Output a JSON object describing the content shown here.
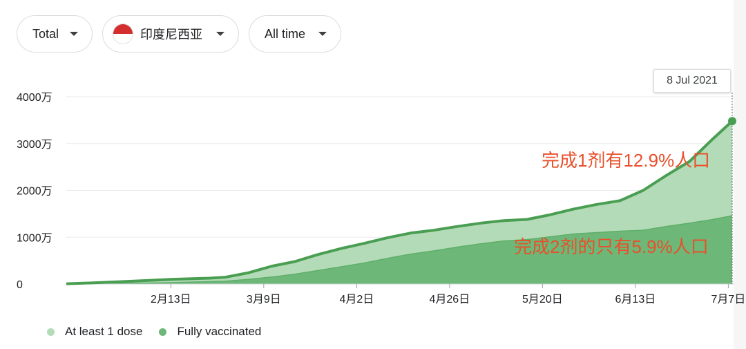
{
  "filters": {
    "metric": {
      "label": "Total"
    },
    "country": {
      "label": "印度尼西亚",
      "flag_colors": [
        "#d32f2f",
        "#ffffff"
      ]
    },
    "range": {
      "label": "All time"
    }
  },
  "tooltip": {
    "date": "8 Jul 2021"
  },
  "annotations": {
    "one_dose": "完成1剂有12.9%人口",
    "fully": "完成2剂的只有5.9%人口"
  },
  "colors": {
    "at_least_one": "#b3dbb7",
    "fully": "#6db878",
    "line": "#4a9e52",
    "grid": "#e8eaed",
    "annotation": "#e8502b"
  },
  "chart_data": {
    "type": "area",
    "title": "",
    "xlabel": "",
    "ylabel": "",
    "y_unit": "万",
    "ylim": [
      0,
      4000
    ],
    "y_ticks": [
      {
        "v": 0,
        "label": "0"
      },
      {
        "v": 1000,
        "label": "1000万"
      },
      {
        "v": 2000,
        "label": "2000万"
      },
      {
        "v": 3000,
        "label": "3000万"
      },
      {
        "v": 4000,
        "label": "4000万"
      }
    ],
    "x_ticks": [
      "2月13日",
      "3月9日",
      "4月2日",
      "4月26日",
      "5月20日",
      "6月13日",
      "7月7日"
    ],
    "x_tick_days": [
      30,
      54,
      78,
      102,
      126,
      150,
      174
    ],
    "x_range_days": [
      3,
      175
    ],
    "grid": true,
    "legend_position": "bottom-left",
    "series": [
      {
        "name": "At least 1 dose",
        "points": [
          [
            3,
            5
          ],
          [
            10,
            25
          ],
          [
            20,
            60
          ],
          [
            30,
            100
          ],
          [
            40,
            125
          ],
          [
            44,
            145
          ],
          [
            50,
            240
          ],
          [
            56,
            380
          ],
          [
            62,
            480
          ],
          [
            68,
            630
          ],
          [
            74,
            760
          ],
          [
            80,
            870
          ],
          [
            86,
            990
          ],
          [
            92,
            1090
          ],
          [
            98,
            1150
          ],
          [
            104,
            1230
          ],
          [
            110,
            1300
          ],
          [
            116,
            1355
          ],
          [
            122,
            1380
          ],
          [
            128,
            1480
          ],
          [
            134,
            1600
          ],
          [
            140,
            1700
          ],
          [
            146,
            1780
          ],
          [
            152,
            2000
          ],
          [
            158,
            2320
          ],
          [
            164,
            2620
          ],
          [
            170,
            3100
          ],
          [
            175,
            3480
          ]
        ]
      },
      {
        "name": "Fully vaccinated",
        "points": [
          [
            3,
            2
          ],
          [
            20,
            15
          ],
          [
            30,
            30
          ],
          [
            44,
            60
          ],
          [
            50,
            100
          ],
          [
            56,
            150
          ],
          [
            62,
            210
          ],
          [
            68,
            290
          ],
          [
            74,
            370
          ],
          [
            80,
            450
          ],
          [
            86,
            550
          ],
          [
            92,
            640
          ],
          [
            98,
            710
          ],
          [
            104,
            790
          ],
          [
            110,
            860
          ],
          [
            116,
            920
          ],
          [
            122,
            950
          ],
          [
            128,
            1010
          ],
          [
            134,
            1070
          ],
          [
            140,
            1100
          ],
          [
            146,
            1130
          ],
          [
            152,
            1150
          ],
          [
            158,
            1230
          ],
          [
            164,
            1300
          ],
          [
            170,
            1380
          ],
          [
            175,
            1460
          ]
        ]
      }
    ]
  }
}
